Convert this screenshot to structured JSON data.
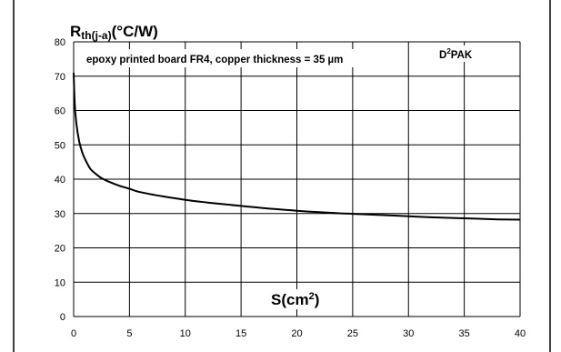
{
  "chart_data": {
    "type": "line",
    "ylabel_main": "R",
    "ylabel_sub": "th(j-a)",
    "ylabel_unit": "(°C/W)",
    "xlabel_main": "S(cm",
    "xlabel_sup": "2",
    "xlabel_end": ")",
    "annotation": "epoxy printed board FR4, copper thickness = 35 µm",
    "package_main": "D",
    "package_sup": "2",
    "package_end": "PAK",
    "xlim": [
      0,
      40
    ],
    "ylim": [
      0,
      80
    ],
    "x_ticks": [
      0,
      5,
      10,
      15,
      20,
      25,
      30,
      35,
      40
    ],
    "y_ticks": [
      0,
      10,
      20,
      30,
      40,
      50,
      60,
      70,
      80
    ],
    "grid": true,
    "series": [
      {
        "x": [
          0,
          0.1,
          0.25,
          0.5,
          0.75,
          1,
          1.5,
          2,
          2.5,
          3,
          4,
          5,
          6,
          8,
          10,
          12,
          15,
          18,
          20,
          22,
          25,
          28,
          30,
          32,
          35,
          38,
          40
        ],
        "y": [
          71,
          62,
          56,
          51,
          48,
          46,
          43,
          41.5,
          40.3,
          39.5,
          38.2,
          37.2,
          36.2,
          35,
          34,
          33.2,
          32.2,
          31.3,
          30.8,
          30.4,
          29.9,
          29.5,
          29.2,
          28.9,
          28.6,
          28.3,
          28.2
        ]
      }
    ]
  }
}
